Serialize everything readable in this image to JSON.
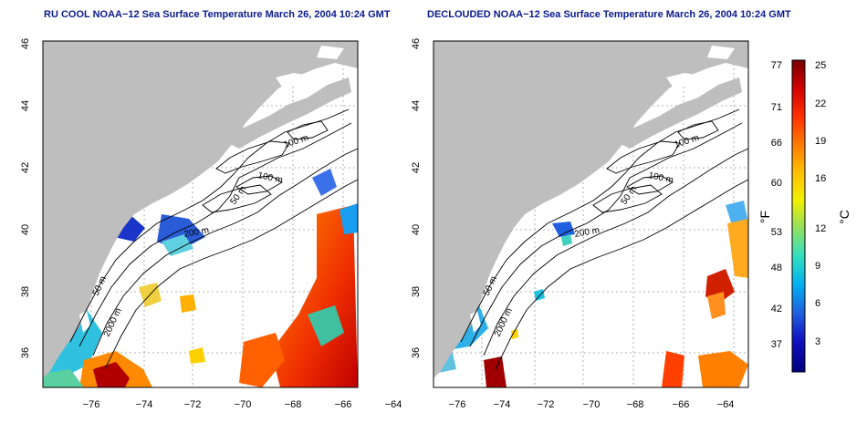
{
  "maps": [
    {
      "title": "RU COOL NOAA−12 Sea Surface Temperature March 26, 2004 10:24 GMT",
      "lon_ticks": [
        "−76",
        "−74",
        "−72",
        "−70",
        "−68",
        "−66",
        "−64"
      ],
      "lat_ticks": [
        "36",
        "38",
        "40",
        "42",
        "44",
        "46"
      ],
      "contour_labels": [
        "100 m",
        "100 m",
        "50 m",
        "200 m",
        "50 m",
        "2000 m"
      ]
    },
    {
      "title": "DECLOUDED NOAA−12 Sea Surface Temperature March 26, 2004 10:24 GMT",
      "lon_ticks": [
        "−76",
        "−74",
        "−72",
        "−70",
        "−68",
        "−66",
        "−64"
      ],
      "lat_ticks": [
        "36",
        "38",
        "40",
        "42",
        "44",
        "46"
      ],
      "contour_labels": [
        "100 m",
        "100 m",
        "50 m",
        "200 m",
        "50 m",
        "2000 m"
      ]
    }
  ],
  "colorbar": {
    "fahrenheit_ticks": [
      "77",
      "71",
      "66",
      "60",
      "53",
      "48",
      "42",
      "37"
    ],
    "celsius_ticks": [
      "25",
      "22",
      "19",
      "16",
      "12",
      "9",
      "6",
      "3"
    ],
    "fahrenheit_unit": "°F",
    "celsius_unit": "°C",
    "colors": [
      "#7a0000",
      "#d00000",
      "#ff3000",
      "#ff7a00",
      "#ffc000",
      "#f0f000",
      "#90e060",
      "#30e0c0",
      "#00b0f0",
      "#2060e0",
      "#1010c0",
      "#000080"
    ]
  }
}
